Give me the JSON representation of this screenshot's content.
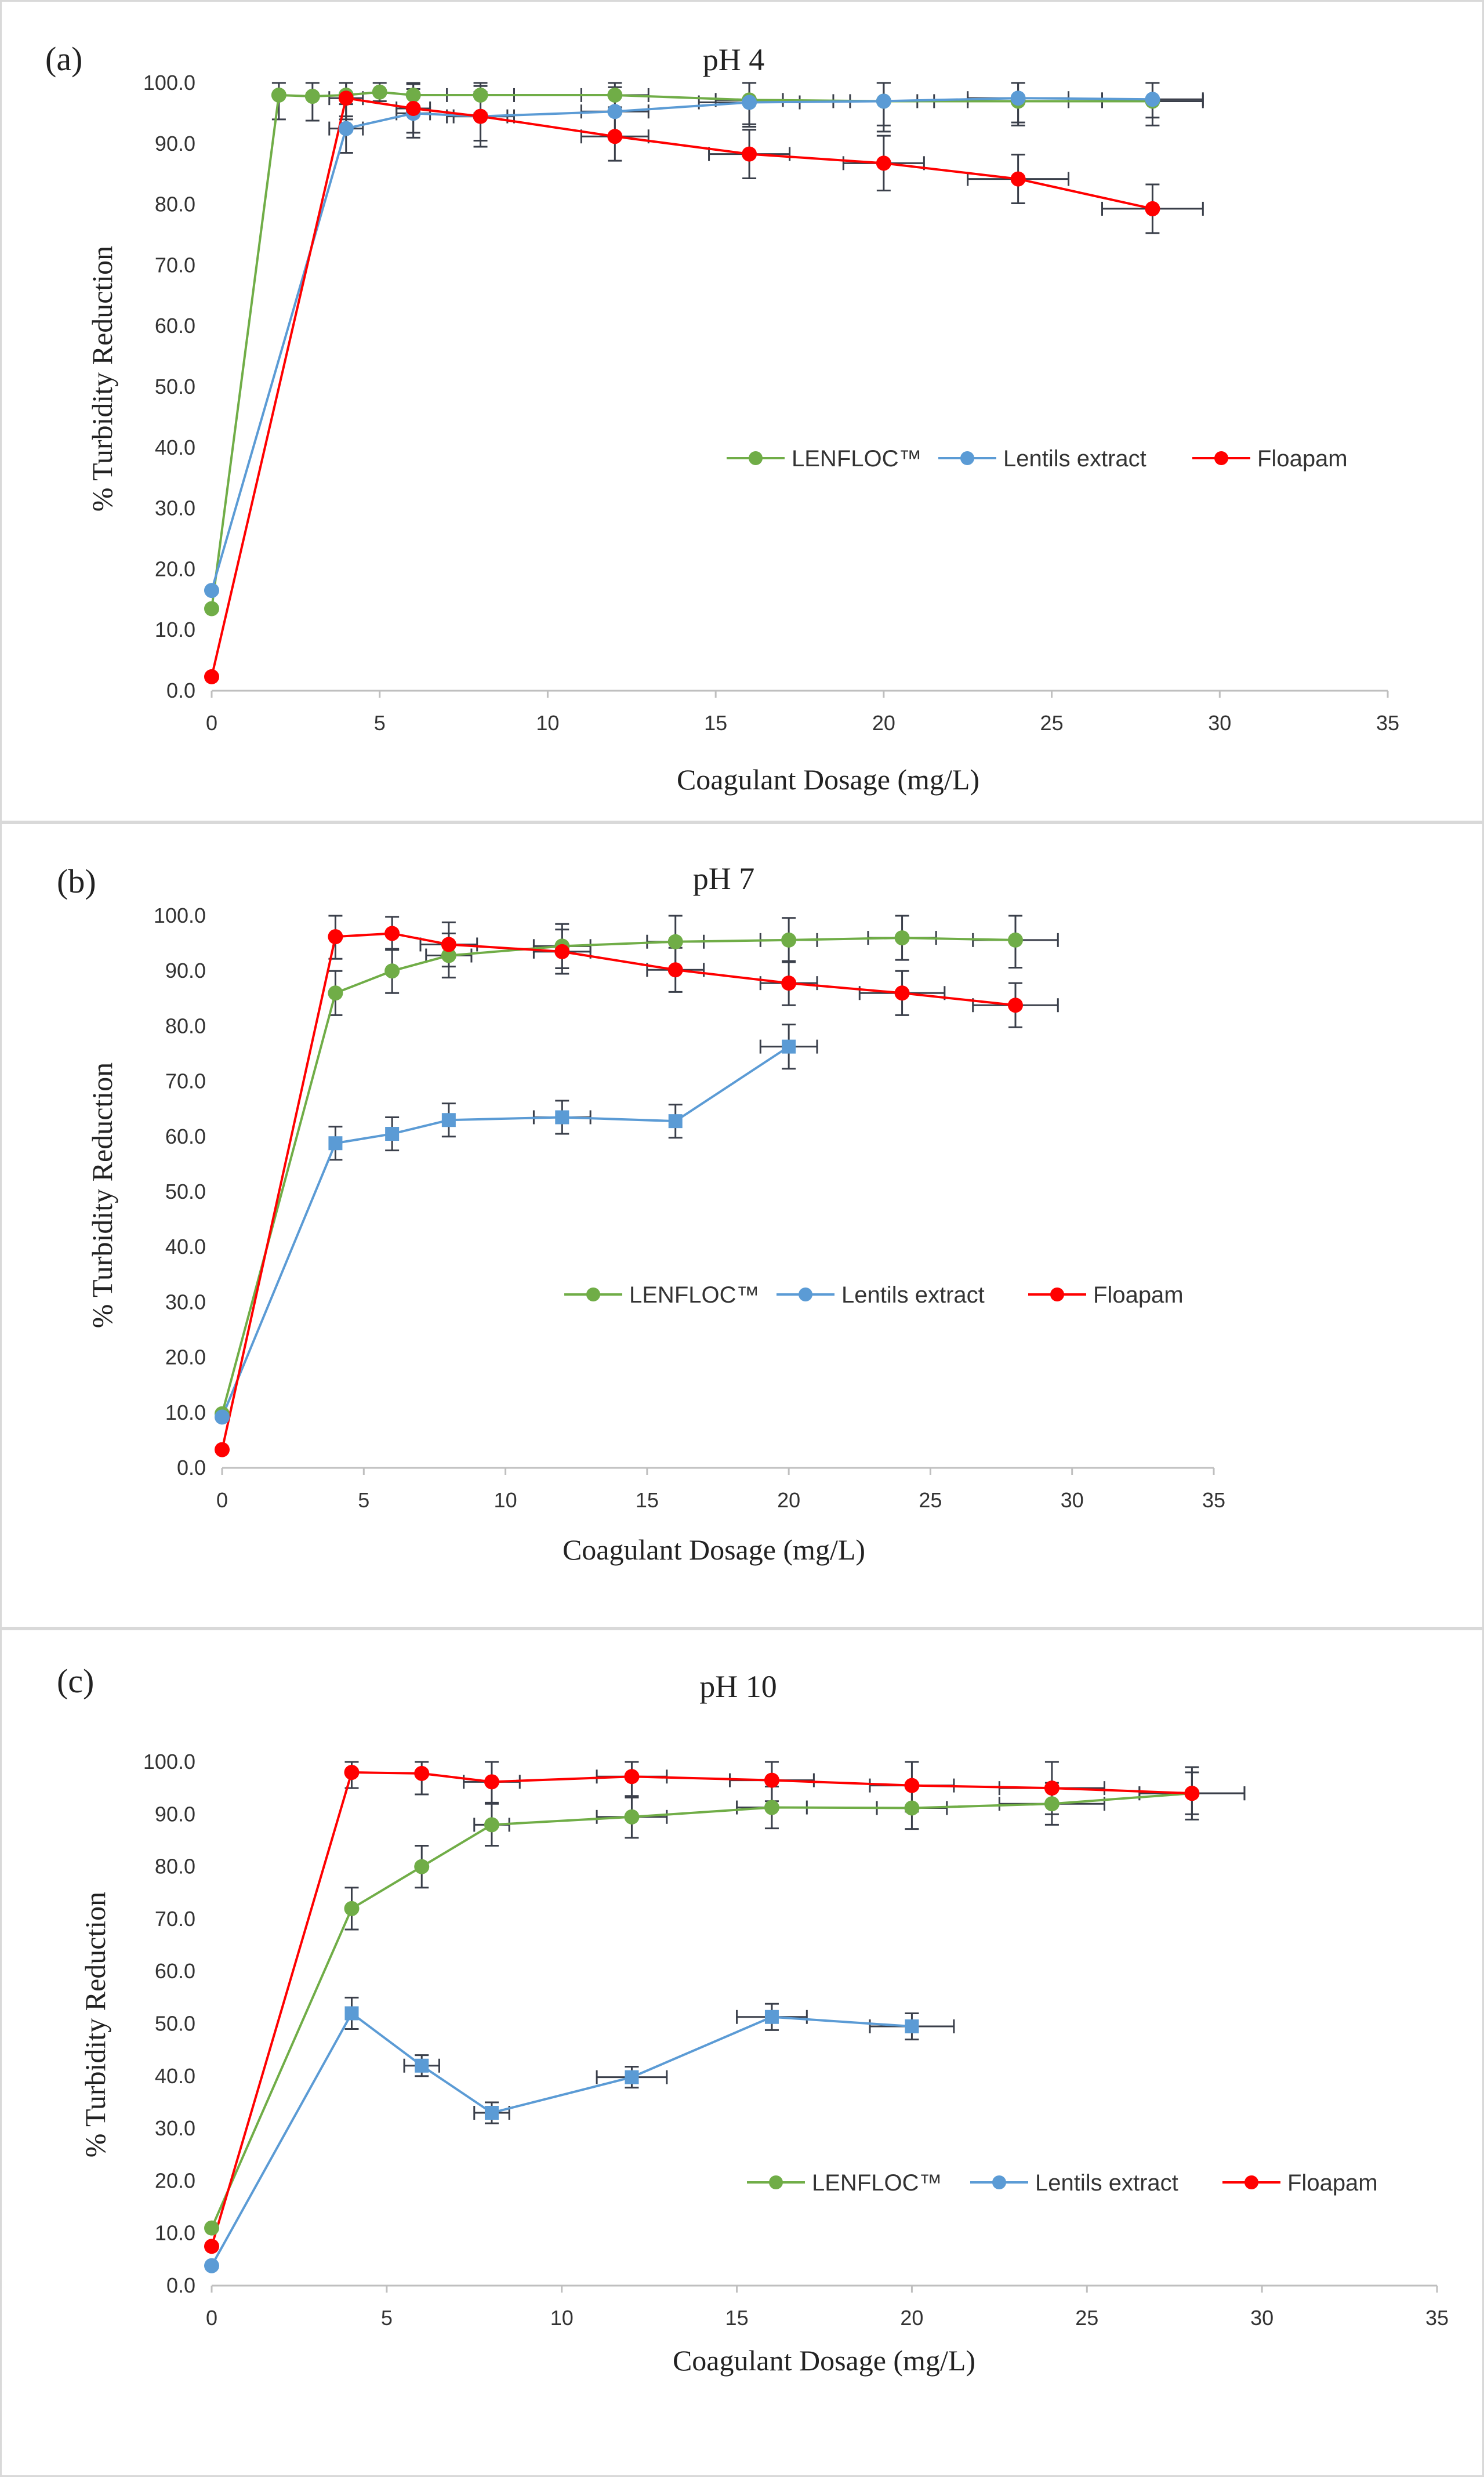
{
  "chart_data": [
    {
      "type": "line",
      "panel_label": "(a)",
      "title": "pH 4",
      "xlabel": "Coagulant Dosage (mg/L)",
      "ylabel": "% Turbidity Reduction",
      "xlim": [
        0,
        35
      ],
      "ylim": [
        0,
        100
      ],
      "x_ticks": [
        "0",
        "5",
        "10",
        "15",
        "20",
        "25",
        "30",
        "35"
      ],
      "y_ticks": [
        "0.0",
        "10.0",
        "20.0",
        "30.0",
        "40.0",
        "50.0",
        "60.0",
        "70.0",
        "80.0",
        "90.0",
        "100.0"
      ],
      "grid": false,
      "legend_position": "middle-right",
      "series": [
        {
          "name": "LENFLOC™",
          "color": "#70ad47",
          "marker": "circle",
          "x": [
            0,
            2,
            3,
            4,
            5,
            6,
            8,
            12,
            16,
            20,
            24,
            28
          ],
          "y": [
            13.5,
            98.0,
            97.8,
            98.0,
            98.5,
            98.0,
            98.0,
            98.0,
            97.2,
            97.0,
            97.0,
            97.0
          ],
          "yerr": [
            0,
            4,
            4,
            4,
            1.5,
            3,
            3,
            2,
            4,
            4,
            4,
            4
          ],
          "xerr": [
            0,
            0,
            0,
            0,
            0,
            0,
            1,
            1,
            1,
            1,
            1.5,
            1.5
          ]
        },
        {
          "name": "Lentils extract",
          "color": "#5b9bd5",
          "marker": "circle",
          "x": [
            0,
            4,
            6,
            8,
            12,
            16,
            20,
            24,
            28
          ],
          "y": [
            16.5,
            92.5,
            95.0,
            94.5,
            95.3,
            96.8,
            97.0,
            97.5,
            97.3
          ],
          "yerr": [
            0,
            4,
            4,
            5,
            4,
            4,
            5,
            4,
            3
          ],
          "xerr": [
            0,
            0.5,
            0.5,
            1,
            1,
            1.5,
            1.5,
            1.5,
            1.5
          ]
        },
        {
          "name": "Floapam",
          "color": "#ff0000",
          "marker": "circle",
          "x": [
            0,
            4,
            6,
            8,
            12,
            16,
            20,
            24,
            28
          ],
          "y": [
            2.3,
            97.5,
            95.8,
            94.5,
            91.2,
            88.3,
            86.8,
            84.2,
            79.3
          ],
          "yerr": [
            0,
            3,
            4,
            4,
            4,
            4,
            4.5,
            4,
            4
          ],
          "xerr": [
            0,
            0.5,
            0.5,
            0.8,
            1,
            1.2,
            1.2,
            1.5,
            1.5
          ]
        }
      ]
    },
    {
      "type": "line",
      "panel_label": "(b)",
      "title": "pH 7",
      "xlabel": "Coagulant Dosage (mg/L)",
      "ylabel": "% Turbidity Reduction",
      "xlim": [
        0,
        35
      ],
      "ylim": [
        0,
        100
      ],
      "x_ticks": [
        "0",
        "5",
        "10",
        "15",
        "20",
        "25",
        "30",
        "35"
      ],
      "y_ticks": [
        "0.0",
        "10.0",
        "20.0",
        "30.0",
        "40.0",
        "50.0",
        "60.0",
        "70.0",
        "80.0",
        "90.0",
        "100.0"
      ],
      "grid": false,
      "legend_position": "middle-right",
      "series": [
        {
          "name": "LENFLOC™",
          "color": "#70ad47",
          "marker": "circle",
          "x": [
            0,
            4,
            6,
            8,
            12,
            16,
            20,
            24,
            28
          ],
          "y": [
            9.8,
            86.0,
            90.0,
            92.8,
            94.5,
            95.3,
            95.6,
            96.0,
            95.6
          ],
          "yerr": [
            0,
            4,
            4,
            4,
            4,
            5,
            4,
            4,
            5
          ],
          "xerr": [
            0,
            0,
            0,
            0.8,
            1,
            1,
            1,
            1.2,
            1.5
          ]
        },
        {
          "name": "Lentils extract",
          "color": "#5b9bd5",
          "marker": "square",
          "x": [
            0,
            4,
            6,
            8,
            12,
            16,
            20
          ],
          "y": [
            9.2,
            58.8,
            60.5,
            63.0,
            63.5,
            62.8,
            76.3
          ],
          "yerr": [
            0,
            3,
            3,
            3,
            3,
            3,
            4
          ],
          "xerr": [
            0,
            0,
            0,
            0,
            1,
            0,
            1
          ]
        },
        {
          "name": "Floapam",
          "color": "#ff0000",
          "marker": "circle",
          "x": [
            0,
            4,
            6,
            8,
            12,
            16,
            20,
            24,
            28
          ],
          "y": [
            3.3,
            96.2,
            96.8,
            94.8,
            93.5,
            90.2,
            87.8,
            86.0,
            83.8
          ],
          "yerr": [
            0,
            4,
            3,
            4,
            4,
            4,
            4,
            4,
            4
          ],
          "xerr": [
            0,
            0,
            0,
            1,
            1,
            1,
            1,
            1.5,
            1.5
          ]
        }
      ]
    },
    {
      "type": "line",
      "panel_label": "(c)",
      "title": "pH 10",
      "xlabel": "Coagulant Dosage (mg/L)",
      "ylabel": "% Turbidity Reduction",
      "xlim": [
        0,
        35
      ],
      "ylim": [
        0,
        100
      ],
      "x_ticks": [
        "0",
        "5",
        "10",
        "15",
        "20",
        "25",
        "30",
        "35"
      ],
      "y_ticks": [
        "0.0",
        "10.0",
        "20.0",
        "30.0",
        "40.0",
        "50.0",
        "60.0",
        "70.0",
        "80.0",
        "90.0",
        "100.0"
      ],
      "grid": false,
      "legend_position": "bottom-right",
      "series": [
        {
          "name": "LENFLOC™",
          "color": "#70ad47",
          "marker": "circle",
          "x": [
            0,
            4,
            6,
            8,
            12,
            16,
            20,
            24,
            28
          ],
          "y": [
            11.0,
            72.0,
            80.0,
            88.0,
            89.5,
            91.3,
            91.2,
            92.0,
            94.0
          ],
          "yerr": [
            0,
            4,
            4,
            4,
            4,
            4,
            4,
            4,
            4
          ],
          "xerr": [
            0,
            0,
            0,
            0.5,
            1,
            1,
            1,
            1.5,
            1.5
          ]
        },
        {
          "name": "Lentils extract",
          "color": "#5b9bd5",
          "marker": "square",
          "x": [
            0,
            4,
            6,
            8,
            12,
            16,
            20
          ],
          "y": [
            3.8,
            52.0,
            42.0,
            33.0,
            39.8,
            51.3,
            49.5
          ],
          "yerr": [
            0,
            3,
            2,
            2,
            2,
            2.5,
            2.5
          ],
          "xerr": [
            0,
            0,
            0.5,
            0.5,
            1,
            1,
            1.2
          ]
        },
        {
          "name": "Floapam",
          "color": "#ff0000",
          "marker": "circle",
          "x": [
            0,
            4,
            6,
            8,
            12,
            16,
            20,
            24,
            28
          ],
          "y": [
            7.5,
            98.0,
            97.8,
            96.2,
            97.2,
            96.5,
            95.5,
            95.0,
            94.0
          ],
          "yerr": [
            0,
            3,
            4,
            4,
            4,
            4,
            5,
            5,
            5
          ],
          "xerr": [
            0,
            0,
            0,
            0.8,
            1,
            1.2,
            1.2,
            1.5,
            1.5
          ]
        }
      ]
    }
  ]
}
